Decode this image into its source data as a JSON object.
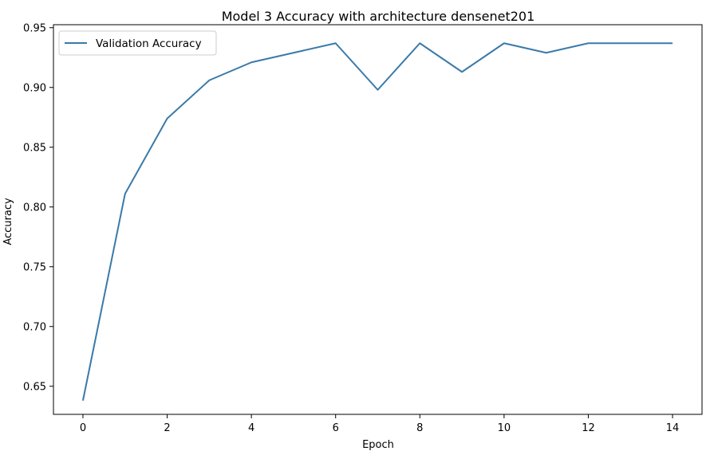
{
  "chart_data": {
    "type": "line",
    "title": "Model 3 Accuracy with architecture densenet201",
    "xlabel": "Epoch",
    "ylabel": "Accuracy",
    "x": [
      0,
      1,
      2,
      3,
      4,
      5,
      6,
      7,
      8,
      9,
      10,
      11,
      12,
      13,
      14
    ],
    "series": [
      {
        "name": "Validation Accuracy",
        "color": "#3a7aa8",
        "values": [
          0.638,
          0.811,
          0.874,
          0.906,
          0.921,
          0.929,
          0.937,
          0.898,
          0.937,
          0.913,
          0.937,
          0.929,
          0.937,
          0.937,
          0.937
        ]
      }
    ],
    "xlim": [
      -0.7,
      14.7
    ],
    "ylim": [
      0.6265,
      0.9525
    ],
    "xticks": [
      0,
      2,
      4,
      6,
      8,
      10,
      12,
      14
    ],
    "xtick_labels": [
      "0",
      "2",
      "4",
      "6",
      "8",
      "10",
      "12",
      "14"
    ],
    "yticks": [
      0.65,
      0.7,
      0.75,
      0.8,
      0.85,
      0.9,
      0.95
    ],
    "ytick_labels": [
      "0.65",
      "0.70",
      "0.75",
      "0.80",
      "0.85",
      "0.90",
      "0.95"
    ],
    "grid": false,
    "legend_position": "top-left"
  }
}
